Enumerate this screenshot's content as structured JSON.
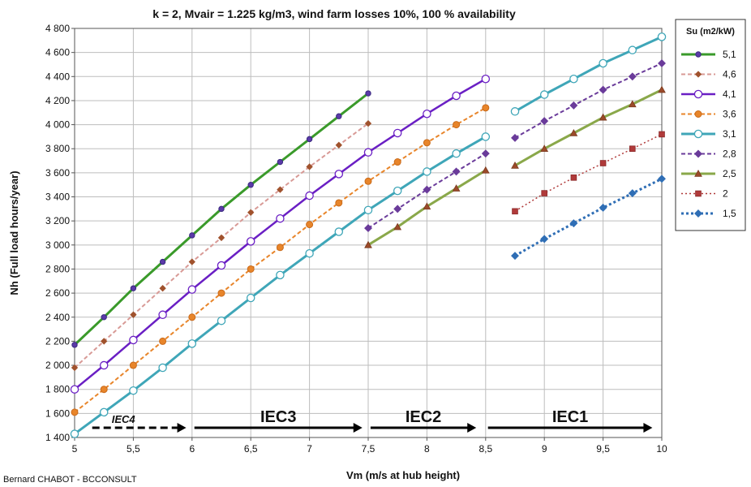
{
  "chart_data": {
    "type": "line",
    "title": "k = 2, Mvair = 1.225 kg/m3, wind farm losses 10%, 100 % availability",
    "xlabel": "Vm (m/s at hub height)",
    "ylabel": "Nh (Full load hours/year)",
    "xlim": [
      5,
      10
    ],
    "ylim": [
      1400,
      4800
    ],
    "x_ticks": [
      "5",
      "5,5",
      "6",
      "6,5",
      "7",
      "7,5",
      "8",
      "8,5",
      "9",
      "9,5",
      "10"
    ],
    "y_ticks": [
      "1 400",
      "1 600",
      "1 800",
      "2 000",
      "2 200",
      "2 400",
      "2 600",
      "2 800",
      "3 000",
      "3 200",
      "3 400",
      "3 600",
      "3 800",
      "4 000",
      "4 200",
      "4 400",
      "4 600",
      "4 800"
    ],
    "grid": true,
    "legend_title": "Su (m2/kW)",
    "legend_position": "right",
    "series": [
      {
        "name": "5,1",
        "color": "#3a9a2a",
        "dash": "",
        "width": 3,
        "marker": "dot",
        "x": [
          5,
          5.25,
          5.5,
          5.75,
          6,
          6.25,
          6.5,
          6.75,
          7,
          7.25,
          7.5
        ],
        "values": [
          2170,
          2400,
          2640,
          2860,
          3080,
          3300,
          3500,
          3690,
          3880,
          4070,
          4260
        ]
      },
      {
        "name": "4,6",
        "color": "#d89a96",
        "dash": "5 3",
        "width": 2,
        "marker": "diamond-brown",
        "x": [
          5,
          5.25,
          5.5,
          5.75,
          6,
          6.25,
          6.5,
          6.75,
          7,
          7.25,
          7.5
        ],
        "values": [
          1980,
          2200,
          2420,
          2640,
          2860,
          3060,
          3270,
          3460,
          3650,
          3830,
          4010
        ]
      },
      {
        "name": "4,1",
        "color": "#6a1fc4",
        "dash": "",
        "width": 2.5,
        "marker": "open-circle",
        "x": [
          5,
          5.25,
          5.5,
          5.75,
          6,
          6.25,
          6.5,
          6.75,
          7,
          7.25,
          7.5,
          7.75,
          8,
          8.25,
          8.5
        ],
        "values": [
          1800,
          2000,
          2210,
          2420,
          2630,
          2830,
          3030,
          3220,
          3410,
          3590,
          3770,
          3930,
          4090,
          4240,
          4380
        ]
      },
      {
        "name": "3,6",
        "color": "#e8852a",
        "dash": "5 3",
        "width": 2,
        "marker": "circle-orange",
        "x": [
          5,
          5.25,
          5.5,
          5.75,
          6,
          6.25,
          6.5,
          6.75,
          7,
          7.25,
          7.5,
          7.75,
          8,
          8.25,
          8.5
        ],
        "values": [
          1610,
          1800,
          2000,
          2200,
          2400,
          2600,
          2800,
          2980,
          3170,
          3350,
          3530,
          3690,
          3850,
          4000,
          4140
        ]
      },
      {
        "name": "3,1",
        "color": "#3fa6b8",
        "dash": "",
        "width": 3,
        "marker": "open-circle",
        "x": [
          5,
          5.25,
          5.5,
          5.75,
          6,
          6.25,
          6.5,
          6.75,
          7,
          7.25,
          7.5,
          7.75,
          8,
          8.25,
          8.5
        ],
        "values": [
          1430,
          1610,
          1790,
          1980,
          2180,
          2370,
          2560,
          2750,
          2930,
          3110,
          3290,
          3450,
          3610,
          3760,
          3900
        ]
      },
      {
        "name": "3,1",
        "color": "#3fa6b8",
        "dash": "",
        "width": 3,
        "marker": "open-circle",
        "x": [
          8.75,
          9,
          9.25,
          9.5,
          9.75,
          10
        ],
        "values": [
          4110,
          4250,
          4380,
          4510,
          4620,
          4730
        ]
      },
      {
        "name": "2,8",
        "color": "#6a3b9a",
        "dash": "5 3",
        "width": 2,
        "marker": "diamond-purple",
        "x": [
          7.5,
          7.75,
          8,
          8.25,
          8.5
        ],
        "values": [
          3140,
          3300,
          3460,
          3610,
          3760
        ]
      },
      {
        "name": "2,8",
        "color": "#6a3b9a",
        "dash": "5 3",
        "width": 2,
        "marker": "diamond-purple",
        "x": [
          8.75,
          9,
          9.25,
          9.5,
          9.75,
          10
        ],
        "values": [
          3890,
          4030,
          4160,
          4290,
          4400,
          4510
        ]
      },
      {
        "name": "2,5",
        "color": "#8aa84a",
        "dash": "",
        "width": 3,
        "marker": "triangle",
        "x": [
          7.5,
          7.75,
          8,
          8.25,
          8.5
        ],
        "values": [
          3000,
          3150,
          3320,
          3470,
          3620
        ]
      },
      {
        "name": "2,5",
        "color": "#8aa84a",
        "dash": "",
        "width": 3,
        "marker": "triangle",
        "x": [
          8.75,
          9,
          9.25,
          9.5,
          9.75,
          10
        ],
        "values": [
          3660,
          3800,
          3930,
          4060,
          4170,
          4290
        ]
      },
      {
        "name": "2",
        "color": "#b03a3a",
        "dash": "2 3",
        "width": 1.5,
        "marker": "square",
        "x": [
          8.75,
          9,
          9.25,
          9.5,
          9.75,
          10
        ],
        "values": [
          3280,
          3430,
          3560,
          3680,
          3800,
          3920
        ]
      },
      {
        "name": "1,5",
        "color": "#2f6eb5",
        "dash": "3 3",
        "width": 3,
        "marker": "diamond-blue",
        "x": [
          8.75,
          9,
          9.25,
          9.5,
          9.75,
          10
        ],
        "values": [
          2910,
          3050,
          3180,
          3310,
          3430,
          3550
        ]
      }
    ],
    "legend": [
      {
        "name": "5,1",
        "color": "#3a9a2a",
        "dash": "",
        "width": 3,
        "marker": "dot"
      },
      {
        "name": "4,6",
        "color": "#d89a96",
        "dash": "5 3",
        "width": 2,
        "marker": "diamond-brown"
      },
      {
        "name": "4,1",
        "color": "#6a1fc4",
        "dash": "",
        "width": 2.5,
        "marker": "open-circle"
      },
      {
        "name": "3,6",
        "color": "#e8852a",
        "dash": "5 3",
        "width": 2,
        "marker": "circle-orange"
      },
      {
        "name": "3,1",
        "color": "#3fa6b8",
        "dash": "",
        "width": 3,
        "marker": "open-circle"
      },
      {
        "name": "2,8",
        "color": "#6a3b9a",
        "dash": "5 3",
        "width": 2,
        "marker": "diamond-purple"
      },
      {
        "name": "2,5",
        "color": "#8aa84a",
        "dash": "",
        "width": 3,
        "marker": "triangle"
      },
      {
        "name": "2",
        "color": "#b03a3a",
        "dash": "2 3",
        "width": 1.5,
        "marker": "square"
      },
      {
        "name": "1,5",
        "color": "#2f6eb5",
        "dash": "3 3",
        "width": 3,
        "marker": "diamond-blue"
      }
    ],
    "annotations": [
      {
        "text": "IEC4",
        "style": "small",
        "from": 5.15,
        "to": 5.95,
        "arrow": "dashed"
      },
      {
        "text": "IEC3",
        "style": "large",
        "from": 6.02,
        "to": 7.45,
        "arrow": "solid"
      },
      {
        "text": "IEC2",
        "style": "large",
        "from": 7.52,
        "to": 8.42,
        "arrow": "solid"
      },
      {
        "text": "IEC1",
        "style": "large",
        "from": 8.52,
        "to": 9.92,
        "arrow": "solid"
      }
    ]
  },
  "credit": "Bernard CHABOT - BCCONSULT"
}
